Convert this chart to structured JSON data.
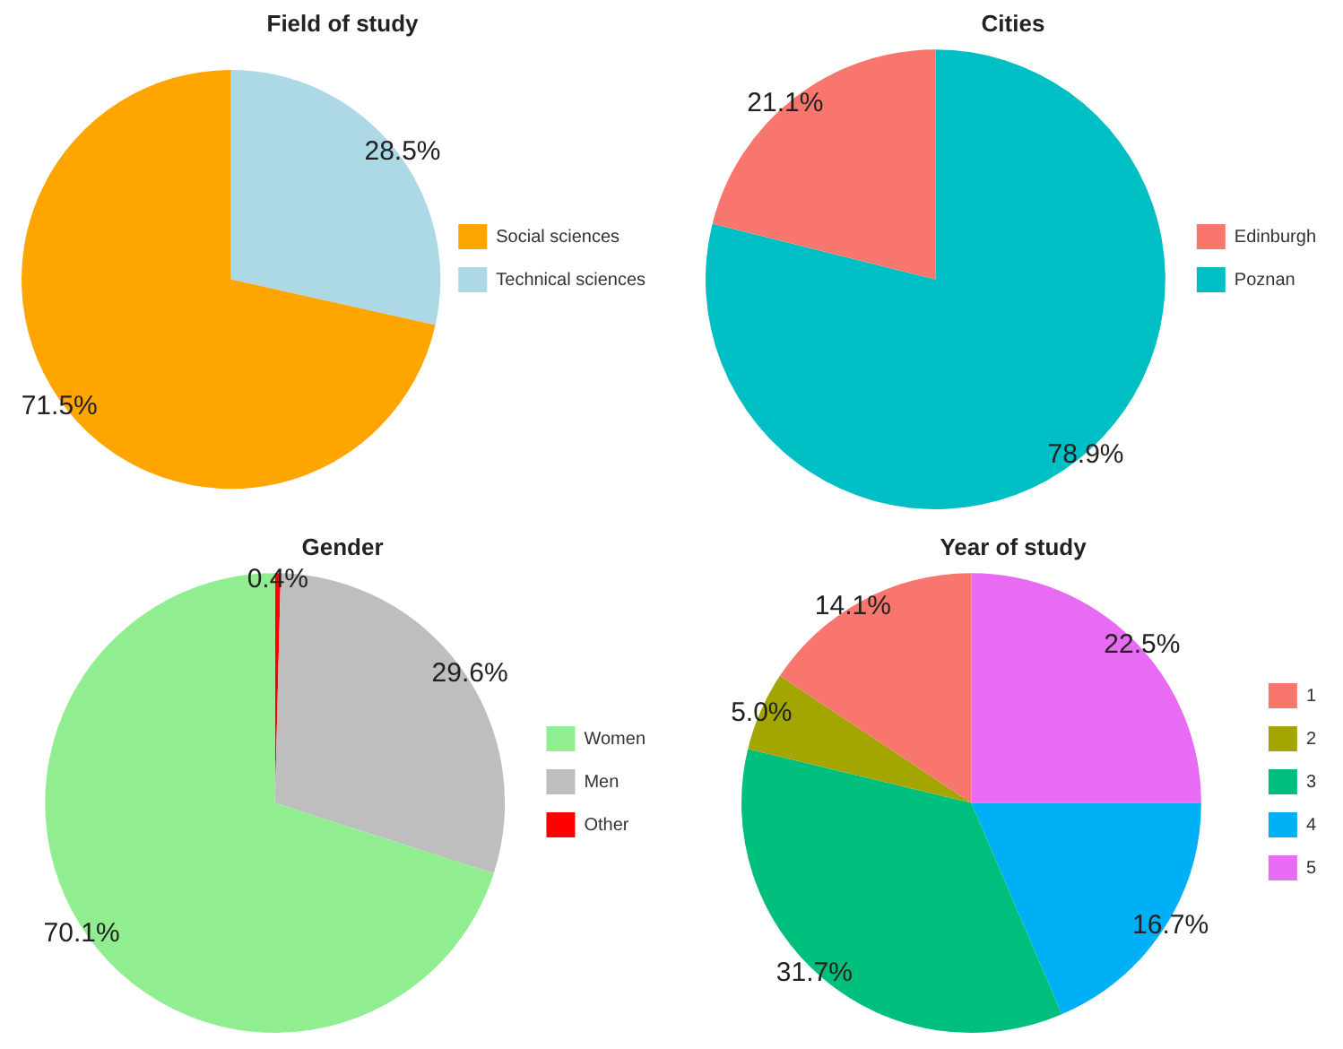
{
  "chart_data": [
    {
      "type": "pie",
      "title": "Field of study",
      "categories": [
        "Social sciences",
        "Technical sciences"
      ],
      "values": [
        71.5,
        28.5
      ],
      "colors": [
        "#ffa500",
        "#add8e6"
      ],
      "value_labels": [
        "71.5%",
        "28.5%"
      ],
      "legend": "right"
    },
    {
      "type": "pie",
      "title": "Cities",
      "categories": [
        "Edinburgh",
        "Poznan"
      ],
      "values": [
        21.1,
        78.9
      ],
      "colors": [
        "#f8766d",
        "#00bfc4"
      ],
      "value_labels": [
        "21.1%",
        "78.9%"
      ],
      "legend": "right"
    },
    {
      "type": "pie",
      "title": "Gender",
      "categories": [
        "Women",
        "Men",
        "Other"
      ],
      "values": [
        70.1,
        29.6,
        0.4
      ],
      "colors": [
        "#90ee90",
        "#bebebe",
        "#ff0000"
      ],
      "value_labels": [
        "70.1%",
        "29.6%",
        "0.4%"
      ],
      "legend": "right"
    },
    {
      "type": "pie",
      "title": "Year of study",
      "categories": [
        "1",
        "2",
        "3",
        "4",
        "5"
      ],
      "values": [
        14.1,
        5.0,
        31.7,
        16.7,
        22.5
      ],
      "colors": [
        "#f8766d",
        "#a3a500",
        "#00bf7d",
        "#00b0f6",
        "#e76bf3"
      ],
      "value_labels": [
        "14.1%",
        "5.0%",
        "31.7%",
        "16.7%",
        "22.5%"
      ],
      "legend": "right"
    }
  ]
}
